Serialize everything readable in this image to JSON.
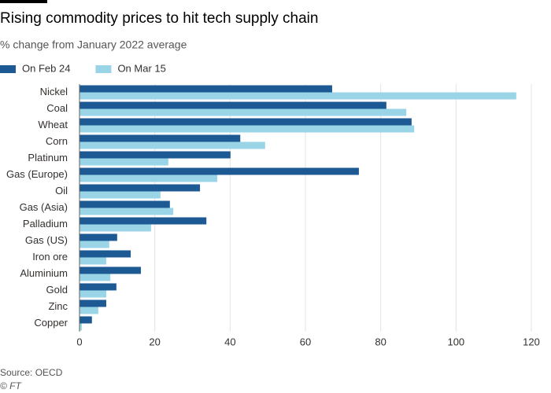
{
  "chart_data": {
    "type": "hbar",
    "title": "Rising commodity prices to hit tech supply chain",
    "subtitle": "% change from January 2022 average",
    "source": "Source: OECD",
    "credit": "© FT",
    "categories": [
      "Nickel",
      "Coal",
      "Wheat",
      "Corn",
      "Platinum",
      "Gas (Europe)",
      "Oil",
      "Gas (Asia)",
      "Palladium",
      "Gas (US)",
      "Iron ore",
      "Aluminium",
      "Gold",
      "Zinc",
      "Copper"
    ],
    "series": [
      {
        "name": "On Feb 24",
        "color": "#1d5a94",
        "values": [
          67.1,
          81.5,
          88.2,
          42.7,
          40.1,
          74.2,
          32.0,
          24.0,
          33.7,
          10.0,
          13.6,
          16.3,
          9.8,
          7.1,
          3.3
        ]
      },
      {
        "name": "On Mar 15",
        "color": "#99d5e7",
        "values": [
          116.0,
          86.8,
          88.9,
          49.3,
          23.6,
          36.6,
          21.5,
          24.9,
          19.0,
          7.9,
          7.1,
          8.2,
          7.1,
          5.0,
          0.6
        ]
      }
    ],
    "xlim": [
      0,
      120
    ],
    "xticks": [
      0,
      20,
      40,
      60,
      80,
      100,
      120
    ],
    "grid": true,
    "legend": "top-left"
  }
}
